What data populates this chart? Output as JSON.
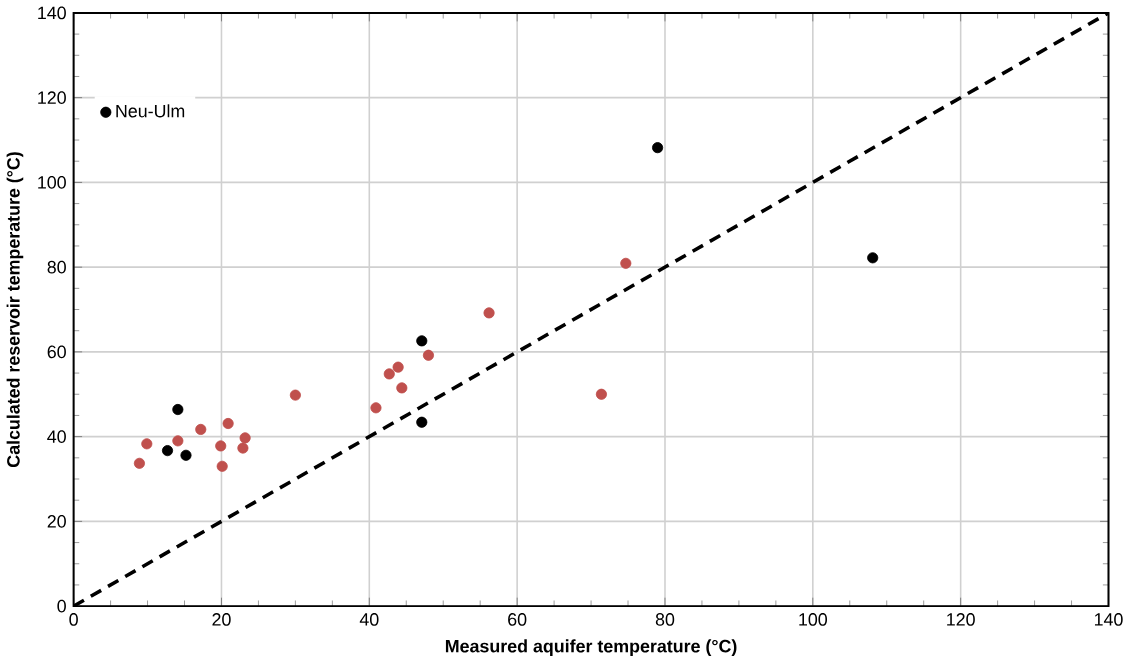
{
  "chart_data": {
    "type": "scatter",
    "xlabel": "Measured aquifer temperature (°C)",
    "ylabel": "Calculated reservoir temperature (°C)",
    "xlim": [
      0,
      140
    ],
    "ylim": [
      0,
      140
    ],
    "xticks": [
      0,
      20,
      40,
      60,
      80,
      100,
      120,
      140
    ],
    "yticks": [
      0,
      20,
      40,
      60,
      80,
      100,
      120,
      140
    ],
    "grid": true,
    "legend": "top left",
    "marker": "circle",
    "series": [
      {
        "color": "#c0504d",
        "x": [
          8.9,
          9.9,
          14.1,
          17.2,
          19.9,
          20.1,
          20.9,
          23.2,
          22.9,
          30,
          40.9,
          42.7,
          43.9,
          44.4,
          48,
          56.2,
          74.7,
          71.4
        ],
        "values": [
          33.7,
          38.3,
          39,
          41.7,
          37.8,
          33,
          43.1,
          39.7,
          37.3,
          49.8,
          46.8,
          54.8,
          56.4,
          51.5,
          59.2,
          69.2,
          80.9,
          50
        ]
      },
      {
        "name": "Neu-Ulm",
        "color": "#000000",
        "x": [
          14.1,
          12.7,
          15.2,
          47.1,
          47.1,
          79,
          108.1
        ],
        "values": [
          46.4,
          36.7,
          35.6,
          62.6,
          43.4,
          108.2,
          82.2
        ]
      },
      {
        "type": "line",
        "color": "#000000",
        "line_style": "dashed",
        "marker": "none",
        "x": [
          0,
          140
        ],
        "values": [
          0,
          140
        ]
      }
    ]
  }
}
